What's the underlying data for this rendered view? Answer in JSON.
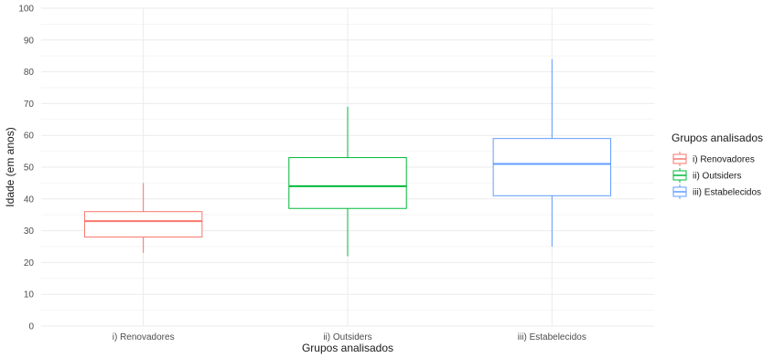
{
  "chart_data": {
    "type": "boxplot",
    "title": "",
    "xlabel": "Grupos analisados",
    "ylabel": "Idade (em anos)",
    "ylim": [
      0,
      100
    ],
    "yticks": [
      0,
      10,
      20,
      30,
      40,
      50,
      60,
      70,
      80,
      90,
      100
    ],
    "grid": true,
    "legend_position": "right",
    "legend_title": "Grupos analisados",
    "categories": [
      "i) Renovadores",
      "ii) Outsiders",
      "iii) Estabelecidos"
    ],
    "series": [
      {
        "name": "i) Renovadores",
        "color": "#F8766D",
        "min": 23,
        "q1": 28,
        "median": 33,
        "q3": 36,
        "max": 45
      },
      {
        "name": "ii) Outsiders",
        "color": "#00BA38",
        "min": 22,
        "q1": 37,
        "median": 44,
        "q3": 53,
        "max": 69
      },
      {
        "name": "iii) Estabelecidos",
        "color": "#619CFF",
        "min": 25,
        "q1": 41,
        "median": 51,
        "q3": 59,
        "max": 84
      }
    ]
  }
}
